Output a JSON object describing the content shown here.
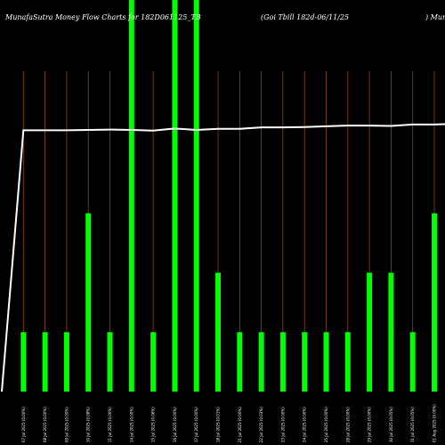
{
  "header": {
    "left": "MunafaSutra  Money Flow  Charts for 182D061125_TB",
    "middle": "(Goi   Tbill 182d-06/11/25",
    "right": ") Munafa"
  },
  "chart_data": {
    "type": "bar",
    "categories": [
      "05 Jul 2025 (0.01%)",
      "07 Jul 2025 (0.00%)",
      "08 Jul 2025 (0.00%)",
      "09 Jul 2025 (0.00%)",
      "10 Jul 2025 (0.08%)",
      "11 Jul 2025 (0.00%)",
      "14 Jul 2025 (0.00%)",
      "15 Jul 2025 (0.06%)",
      "16 Jul 2025 (0.00%)",
      "17 Jul 2025 (0.00%)",
      "18 Jul 2025 (0.01%)",
      "21 Jul 2025 (0.00%)",
      "22 Jul 2025 (0.03%)",
      "23 Jul 2025 (0.00%)",
      "24 Jul 2025 (0.00%)",
      "25 Jul 2025 (0.00%)",
      "28 Jul 2025 (0.00%)",
      "29 Jul 2025 (0.00%)",
      "30 Jul 2025 (0.05%)",
      "31 Jul 2025 (0.05%)",
      "01 Aug 2025 (0.00%)",
      "04 Aug 2025 (0.03%)"
    ],
    "bar_values": [
      1,
      1,
      1,
      3,
      1,
      16,
      1,
      16,
      16,
      2,
      1,
      1,
      1,
      1,
      1,
      1,
      2,
      2,
      1,
      3
    ],
    "bar_categories_index": [
      0,
      1,
      2,
      3,
      4,
      5,
      6,
      7,
      8,
      9,
      10,
      11,
      12,
      13,
      14,
      15,
      16,
      17,
      18,
      19
    ],
    "line_values": [
      0,
      72.5,
      72.5,
      72.5,
      72.6,
      72.7,
      72.6,
      72.4,
      73.0,
      72.6,
      72.9,
      72.9,
      73.3,
      73.3,
      73.4,
      73.6,
      73.8,
      73.8,
      73.7,
      74.1,
      74.1,
      74.3
    ],
    "ylim": [
      0,
      100
    ],
    "colors": {
      "background": "#000000",
      "bar": "#00ff00",
      "line": "#ffffff",
      "gridline": "#8b4513",
      "text": "#ffffff"
    }
  }
}
